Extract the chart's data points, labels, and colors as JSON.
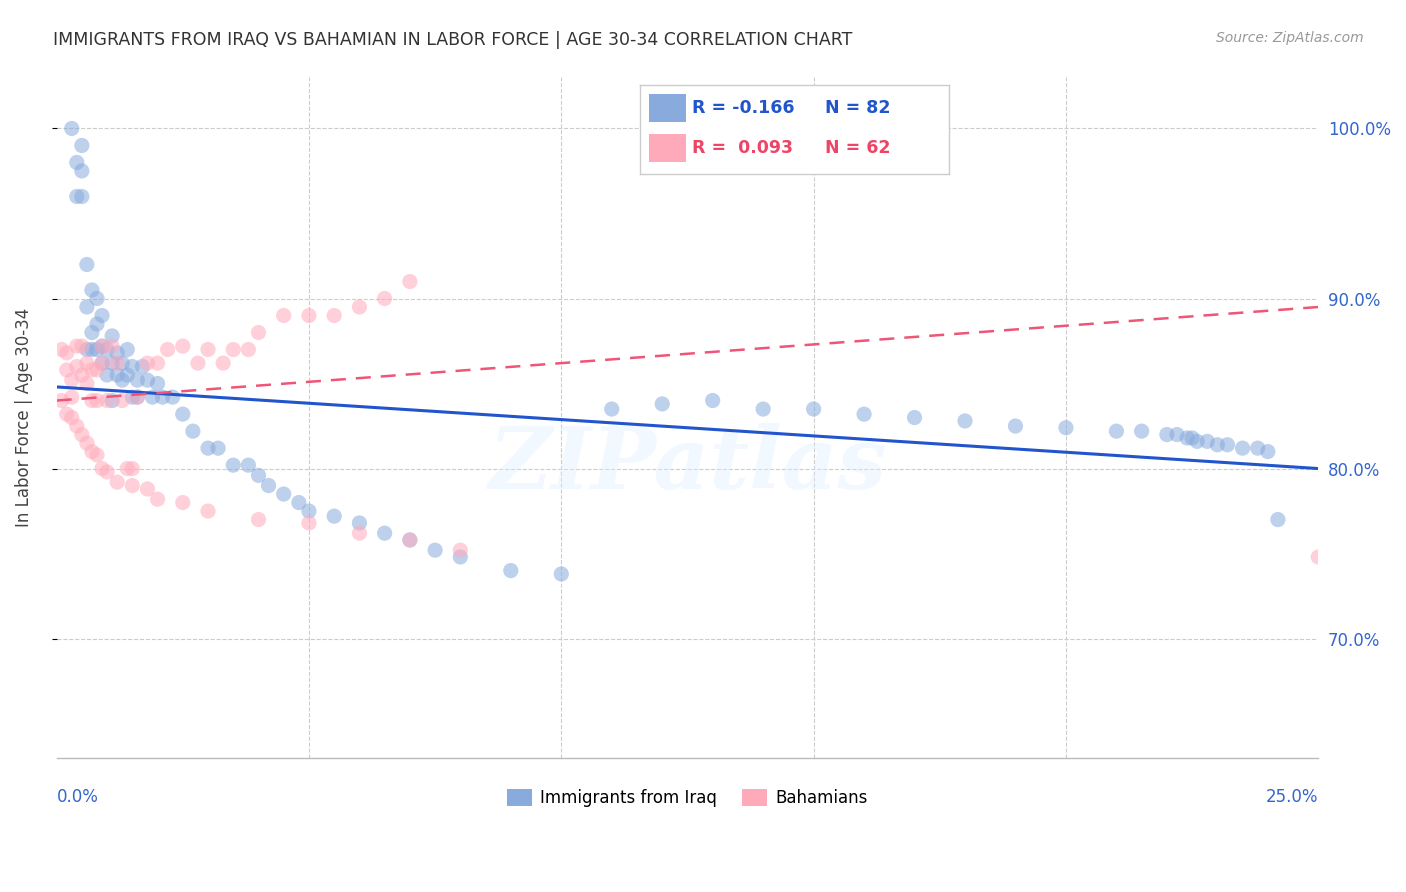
{
  "title": "IMMIGRANTS FROM IRAQ VS BAHAMIAN IN LABOR FORCE | AGE 30-34 CORRELATION CHART",
  "source": "Source: ZipAtlas.com",
  "ylabel": "In Labor Force | Age 30-34",
  "ytick_values": [
    0.7,
    0.8,
    0.9,
    1.0
  ],
  "xlim": [
    0.0,
    0.25
  ],
  "ylim": [
    0.63,
    1.03
  ],
  "legend_blue_r": "-0.166",
  "legend_blue_n": "82",
  "legend_pink_r": "0.093",
  "legend_pink_n": "62",
  "watermark": "ZIPatlas",
  "legend_label_blue": "Immigrants from Iraq",
  "legend_label_pink": "Bahamians",
  "blue_color": "#88AADD",
  "pink_color": "#FFAABB",
  "blue_line_color": "#2255CC",
  "pink_line_color": "#EE5577",
  "blue_trend": [
    0.848,
    0.8
  ],
  "pink_trend": [
    0.84,
    0.895
  ],
  "iraq_x": [
    0.003,
    0.004,
    0.004,
    0.005,
    0.005,
    0.005,
    0.006,
    0.006,
    0.006,
    0.007,
    0.007,
    0.007,
    0.008,
    0.008,
    0.008,
    0.009,
    0.009,
    0.009,
    0.01,
    0.01,
    0.011,
    0.011,
    0.011,
    0.012,
    0.012,
    0.013,
    0.013,
    0.014,
    0.014,
    0.015,
    0.015,
    0.016,
    0.016,
    0.017,
    0.018,
    0.019,
    0.02,
    0.021,
    0.023,
    0.025,
    0.027,
    0.03,
    0.032,
    0.035,
    0.038,
    0.04,
    0.042,
    0.045,
    0.048,
    0.05,
    0.055,
    0.06,
    0.065,
    0.07,
    0.075,
    0.08,
    0.09,
    0.1,
    0.11,
    0.12,
    0.13,
    0.14,
    0.15,
    0.16,
    0.17,
    0.18,
    0.19,
    0.2,
    0.21,
    0.215,
    0.22,
    0.222,
    0.224,
    0.225,
    0.226,
    0.228,
    0.23,
    0.232,
    0.235,
    0.238,
    0.24,
    0.242
  ],
  "iraq_y": [
    1.0,
    0.96,
    0.98,
    0.96,
    0.975,
    0.99,
    0.87,
    0.895,
    0.92,
    0.87,
    0.88,
    0.905,
    0.87,
    0.885,
    0.9,
    0.862,
    0.872,
    0.89,
    0.855,
    0.87,
    0.84,
    0.862,
    0.878,
    0.855,
    0.868,
    0.852,
    0.862,
    0.855,
    0.87,
    0.842,
    0.86,
    0.842,
    0.852,
    0.86,
    0.852,
    0.842,
    0.85,
    0.842,
    0.842,
    0.832,
    0.822,
    0.812,
    0.812,
    0.802,
    0.802,
    0.796,
    0.79,
    0.785,
    0.78,
    0.775,
    0.772,
    0.768,
    0.762,
    0.758,
    0.752,
    0.748,
    0.74,
    0.738,
    0.835,
    0.838,
    0.84,
    0.835,
    0.835,
    0.832,
    0.83,
    0.828,
    0.825,
    0.824,
    0.822,
    0.822,
    0.82,
    0.82,
    0.818,
    0.818,
    0.816,
    0.816,
    0.814,
    0.814,
    0.812,
    0.812,
    0.81,
    0.77
  ],
  "bahamian_x": [
    0.001,
    0.002,
    0.002,
    0.003,
    0.003,
    0.004,
    0.004,
    0.005,
    0.005,
    0.006,
    0.006,
    0.007,
    0.007,
    0.008,
    0.008,
    0.009,
    0.009,
    0.01,
    0.011,
    0.012,
    0.013,
    0.014,
    0.015,
    0.016,
    0.018,
    0.02,
    0.022,
    0.025,
    0.028,
    0.03,
    0.033,
    0.035,
    0.038,
    0.04,
    0.045,
    0.05,
    0.055,
    0.06,
    0.065,
    0.07,
    0.001,
    0.002,
    0.003,
    0.004,
    0.005,
    0.006,
    0.007,
    0.008,
    0.009,
    0.01,
    0.012,
    0.015,
    0.018,
    0.02,
    0.025,
    0.03,
    0.04,
    0.05,
    0.06,
    0.07,
    0.08,
    0.25
  ],
  "bahamian_y": [
    0.87,
    0.858,
    0.868,
    0.842,
    0.852,
    0.86,
    0.872,
    0.855,
    0.872,
    0.85,
    0.862,
    0.84,
    0.858,
    0.84,
    0.858,
    0.872,
    0.862,
    0.84,
    0.872,
    0.862,
    0.84,
    0.8,
    0.8,
    0.842,
    0.862,
    0.862,
    0.87,
    0.872,
    0.862,
    0.87,
    0.862,
    0.87,
    0.87,
    0.88,
    0.89,
    0.89,
    0.89,
    0.895,
    0.9,
    0.91,
    0.84,
    0.832,
    0.83,
    0.825,
    0.82,
    0.815,
    0.81,
    0.808,
    0.8,
    0.798,
    0.792,
    0.79,
    0.788,
    0.782,
    0.78,
    0.775,
    0.77,
    0.768,
    0.762,
    0.758,
    0.752,
    0.748
  ]
}
